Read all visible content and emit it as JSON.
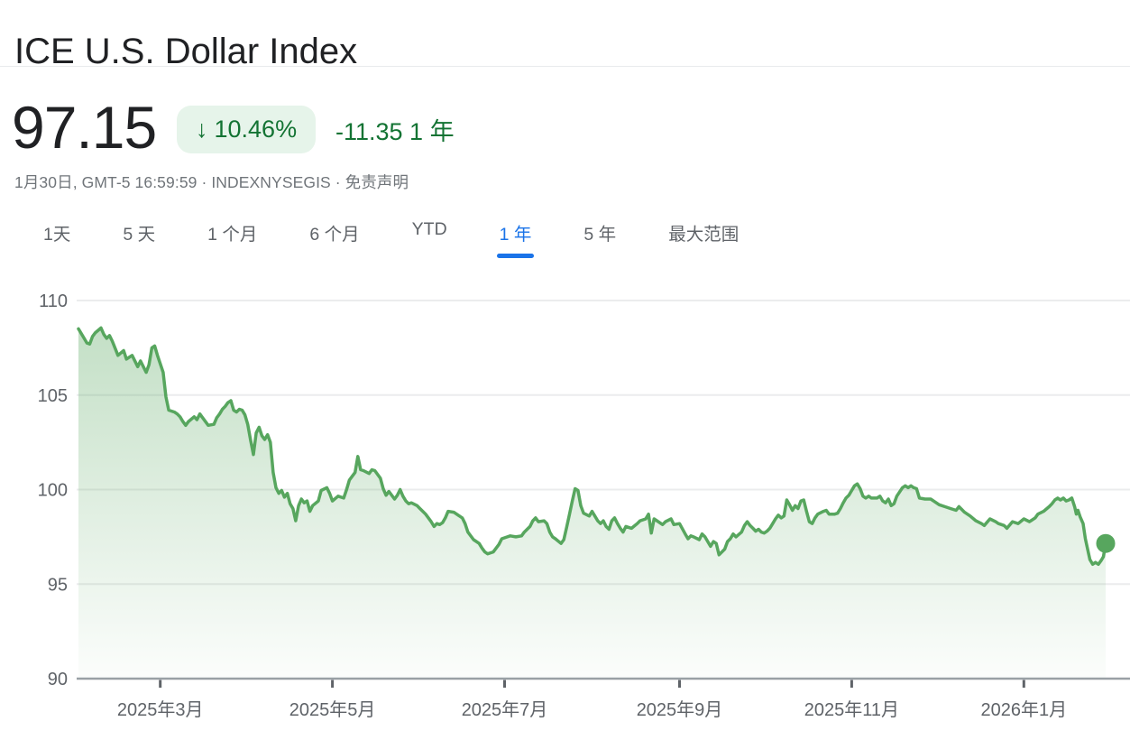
{
  "header": {
    "title": "ICE U.S. Dollar Index",
    "price": "97.15",
    "arrow": "↓",
    "change_percent": "10.46%",
    "change_absolute": "-11.35 1 年",
    "subtitle_prefix": "1月30日, GMT-5 16:59:59 · INDEXNYSEGIS · ",
    "disclaimer": "免责声明"
  },
  "tabs": [
    {
      "key": "1d",
      "label": "1天",
      "selected": false
    },
    {
      "key": "5d",
      "label": "5 天",
      "selected": false
    },
    {
      "key": "1m",
      "label": "1 个月",
      "selected": false
    },
    {
      "key": "6m",
      "label": "6 个月",
      "selected": false
    },
    {
      "key": "ytd",
      "label": "YTD",
      "selected": false
    },
    {
      "key": "1y",
      "label": "1 年",
      "selected": true
    },
    {
      "key": "5y",
      "label": "5 年",
      "selected": false
    },
    {
      "key": "max",
      "label": "最大范围",
      "selected": false
    }
  ],
  "colors": {
    "accent_blue": "#1a73e8",
    "line_green": "#57a65e",
    "area_green_rgb": "87,166,94",
    "badge_bg": "#e6f4ea",
    "text_green": "#137333",
    "grid": "#ebeced",
    "axis": "#9aa0a6",
    "tick": "#5f6368"
  },
  "chart_data": {
    "type": "line",
    "name": "ICE U.S. Dollar Index, 1 年",
    "x_unit": "days since 2025-01-31",
    "x_start_date": "2025-01-31",
    "x_end_date": "2026-01-30",
    "x_domain_days": [
      0,
      364
    ],
    "ylim": [
      90,
      110
    ],
    "yticks": [
      110,
      105,
      100,
      95,
      90
    ],
    "grid": true,
    "last_price": 97.15,
    "xticks": [
      {
        "day": 29,
        "label": "2025年3月"
      },
      {
        "day": 90,
        "label": "2025年5月"
      },
      {
        "day": 151,
        "label": "2025年7月"
      },
      {
        "day": 213,
        "label": "2025年9月"
      },
      {
        "day": 274,
        "label": "2025年11月"
      },
      {
        "day": 335,
        "label": "2026年1月"
      }
    ],
    "series": [
      {
        "name": "ICE U.S. Dollar Index",
        "points": [
          [
            0,
            108.5
          ],
          [
            2,
            108.0
          ],
          [
            3,
            107.75
          ],
          [
            4,
            107.7
          ],
          [
            5,
            108.1
          ],
          [
            6,
            108.3
          ],
          [
            8,
            108.55
          ],
          [
            9,
            108.2
          ],
          [
            10,
            108.0
          ],
          [
            11,
            108.15
          ],
          [
            12,
            107.85
          ],
          [
            14,
            107.1
          ],
          [
            16,
            107.35
          ],
          [
            17,
            106.9
          ],
          [
            19,
            107.1
          ],
          [
            21,
            106.5
          ],
          [
            22,
            106.8
          ],
          [
            24,
            106.2
          ],
          [
            25,
            106.6
          ],
          [
            26,
            107.5
          ],
          [
            27,
            107.6
          ],
          [
            28,
            107.1
          ],
          [
            30,
            106.2
          ],
          [
            31,
            104.9
          ],
          [
            32,
            104.2
          ],
          [
            34,
            104.1
          ],
          [
            35,
            104.0
          ],
          [
            36,
            103.85
          ],
          [
            37,
            103.6
          ],
          [
            38,
            103.4
          ],
          [
            39,
            103.6
          ],
          [
            41,
            103.85
          ],
          [
            42,
            103.7
          ],
          [
            43,
            104.0
          ],
          [
            44,
            103.8
          ],
          [
            46,
            103.4
          ],
          [
            48,
            103.45
          ],
          [
            49,
            103.8
          ],
          [
            50,
            104.0
          ],
          [
            51,
            104.25
          ],
          [
            52,
            104.4
          ],
          [
            53,
            104.6
          ],
          [
            54,
            104.7
          ],
          [
            55,
            104.2
          ],
          [
            56,
            104.1
          ],
          [
            57,
            104.25
          ],
          [
            58,
            104.2
          ],
          [
            59,
            103.95
          ],
          [
            60,
            103.45
          ],
          [
            61,
            102.6
          ],
          [
            62,
            101.85
          ],
          [
            63,
            103.0
          ],
          [
            64,
            103.3
          ],
          [
            65,
            102.85
          ],
          [
            66,
            102.65
          ],
          [
            67,
            102.9
          ],
          [
            68,
            102.5
          ],
          [
            69,
            100.9
          ],
          [
            70,
            100.1
          ],
          [
            71,
            99.8
          ],
          [
            72,
            99.95
          ],
          [
            73,
            99.6
          ],
          [
            74,
            99.8
          ],
          [
            75,
            99.25
          ],
          [
            76,
            99.0
          ],
          [
            77,
            98.35
          ],
          [
            78,
            99.15
          ],
          [
            79,
            99.5
          ],
          [
            80,
            99.3
          ],
          [
            81,
            99.4
          ],
          [
            82,
            98.85
          ],
          [
            83,
            99.15
          ],
          [
            85,
            99.4
          ],
          [
            86,
            99.95
          ],
          [
            88,
            100.1
          ],
          [
            89,
            99.8
          ],
          [
            90,
            99.4
          ],
          [
            92,
            99.65
          ],
          [
            94,
            99.55
          ],
          [
            95,
            100.0
          ],
          [
            96,
            100.5
          ],
          [
            97,
            100.7
          ],
          [
            98,
            100.9
          ],
          [
            99,
            101.75
          ],
          [
            100,
            101.05
          ],
          [
            101,
            101.0
          ],
          [
            103,
            100.85
          ],
          [
            104,
            101.05
          ],
          [
            105,
            101.0
          ],
          [
            107,
            100.6
          ],
          [
            108,
            100.05
          ],
          [
            109,
            99.7
          ],
          [
            110,
            99.9
          ],
          [
            112,
            99.5
          ],
          [
            113,
            99.7
          ],
          [
            114,
            100.0
          ],
          [
            115,
            99.65
          ],
          [
            116,
            99.4
          ],
          [
            117,
            99.25
          ],
          [
            118,
            99.3
          ],
          [
            120,
            99.15
          ],
          [
            121,
            99.0
          ],
          [
            122,
            98.85
          ],
          [
            123,
            98.7
          ],
          [
            125,
            98.3
          ],
          [
            126,
            98.05
          ],
          [
            127,
            98.2
          ],
          [
            128,
            98.15
          ],
          [
            129,
            98.25
          ],
          [
            130,
            98.5
          ],
          [
            131,
            98.85
          ],
          [
            133,
            98.8
          ],
          [
            134,
            98.7
          ],
          [
            136,
            98.5
          ],
          [
            137,
            98.2
          ],
          [
            138,
            97.75
          ],
          [
            140,
            97.35
          ],
          [
            142,
            97.15
          ],
          [
            143,
            96.9
          ],
          [
            144,
            96.7
          ],
          [
            145,
            96.6
          ],
          [
            147,
            96.7
          ],
          [
            148,
            96.9
          ],
          [
            149,
            97.1
          ],
          [
            150,
            97.4
          ],
          [
            152,
            97.5
          ],
          [
            153,
            97.55
          ],
          [
            155,
            97.5
          ],
          [
            157,
            97.55
          ],
          [
            158,
            97.75
          ],
          [
            160,
            98.05
          ],
          [
            161,
            98.35
          ],
          [
            162,
            98.5
          ],
          [
            163,
            98.3
          ],
          [
            165,
            98.35
          ],
          [
            166,
            98.2
          ],
          [
            167,
            97.75
          ],
          [
            168,
            97.5
          ],
          [
            169,
            97.4
          ],
          [
            171,
            97.15
          ],
          [
            172,
            97.35
          ],
          [
            173,
            98.0
          ],
          [
            174,
            98.7
          ],
          [
            175,
            99.4
          ],
          [
            176,
            100.05
          ],
          [
            177,
            99.95
          ],
          [
            178,
            99.15
          ],
          [
            179,
            98.75
          ],
          [
            181,
            98.6
          ],
          [
            182,
            98.85
          ],
          [
            183,
            98.6
          ],
          [
            184,
            98.35
          ],
          [
            185,
            98.2
          ],
          [
            186,
            98.35
          ],
          [
            187,
            98.05
          ],
          [
            188,
            97.9
          ],
          [
            189,
            98.35
          ],
          [
            190,
            98.5
          ],
          [
            191,
            98.2
          ],
          [
            192,
            97.95
          ],
          [
            193,
            97.75
          ],
          [
            194,
            98.05
          ],
          [
            196,
            97.95
          ],
          [
            198,
            98.2
          ],
          [
            199,
            98.35
          ],
          [
            201,
            98.45
          ],
          [
            202,
            98.7
          ],
          [
            203,
            97.7
          ],
          [
            204,
            98.45
          ],
          [
            205,
            98.35
          ],
          [
            207,
            98.15
          ],
          [
            208,
            98.3
          ],
          [
            210,
            98.45
          ],
          [
            211,
            98.15
          ],
          [
            213,
            98.2
          ],
          [
            215,
            97.65
          ],
          [
            216,
            97.4
          ],
          [
            217,
            97.55
          ],
          [
            218,
            97.5
          ],
          [
            220,
            97.35
          ],
          [
            221,
            97.65
          ],
          [
            222,
            97.5
          ],
          [
            224,
            97.0
          ],
          [
            225,
            97.25
          ],
          [
            226,
            97.15
          ],
          [
            227,
            96.55
          ],
          [
            229,
            96.85
          ],
          [
            230,
            97.25
          ],
          [
            231,
            97.4
          ],
          [
            232,
            97.65
          ],
          [
            233,
            97.5
          ],
          [
            235,
            97.75
          ],
          [
            236,
            98.1
          ],
          [
            237,
            98.3
          ],
          [
            238,
            98.1
          ],
          [
            239,
            97.95
          ],
          [
            240,
            97.8
          ],
          [
            241,
            97.9
          ],
          [
            242,
            97.75
          ],
          [
            243,
            97.7
          ],
          [
            244,
            97.8
          ],
          [
            245,
            97.95
          ],
          [
            246,
            98.2
          ],
          [
            247,
            98.45
          ],
          [
            248,
            98.65
          ],
          [
            249,
            98.5
          ],
          [
            250,
            98.6
          ],
          [
            251,
            99.45
          ],
          [
            252,
            99.2
          ],
          [
            253,
            98.9
          ],
          [
            254,
            99.15
          ],
          [
            255,
            99.0
          ],
          [
            256,
            99.4
          ],
          [
            257,
            99.45
          ],
          [
            258,
            98.85
          ],
          [
            259,
            98.3
          ],
          [
            260,
            98.2
          ],
          [
            261,
            98.5
          ],
          [
            262,
            98.7
          ],
          [
            264,
            98.85
          ],
          [
            265,
            98.9
          ],
          [
            266,
            98.7
          ],
          [
            268,
            98.7
          ],
          [
            269,
            98.75
          ],
          [
            270,
            99.0
          ],
          [
            271,
            99.3
          ],
          [
            272,
            99.55
          ],
          [
            273,
            99.7
          ],
          [
            274,
            99.95
          ],
          [
            275,
            100.2
          ],
          [
            276,
            100.3
          ],
          [
            277,
            100.05
          ],
          [
            278,
            99.65
          ],
          [
            279,
            99.55
          ],
          [
            280,
            99.65
          ],
          [
            281,
            99.55
          ],
          [
            283,
            99.55
          ],
          [
            284,
            99.65
          ],
          [
            285,
            99.4
          ],
          [
            286,
            99.3
          ],
          [
            287,
            99.5
          ],
          [
            288,
            99.15
          ],
          [
            289,
            99.25
          ],
          [
            290,
            99.65
          ],
          [
            292,
            100.1
          ],
          [
            293,
            100.2
          ],
          [
            294,
            100.1
          ],
          [
            295,
            100.2
          ],
          [
            296,
            100.1
          ],
          [
            297,
            100.05
          ],
          [
            298,
            99.55
          ],
          [
            300,
            99.5
          ],
          [
            302,
            99.5
          ],
          [
            303,
            99.4
          ],
          [
            305,
            99.2
          ],
          [
            307,
            99.1
          ],
          [
            309,
            99.0
          ],
          [
            311,
            98.9
          ],
          [
            312,
            99.1
          ],
          [
            314,
            98.8
          ],
          [
            316,
            98.6
          ],
          [
            318,
            98.35
          ],
          [
            320,
            98.2
          ],
          [
            321,
            98.1
          ],
          [
            323,
            98.45
          ],
          [
            325,
            98.3
          ],
          [
            326,
            98.2
          ],
          [
            328,
            98.1
          ],
          [
            329,
            97.95
          ],
          [
            331,
            98.3
          ],
          [
            333,
            98.2
          ],
          [
            335,
            98.45
          ],
          [
            337,
            98.3
          ],
          [
            339,
            98.5
          ],
          [
            340,
            98.7
          ],
          [
            342,
            98.85
          ],
          [
            344,
            99.1
          ],
          [
            345,
            99.25
          ],
          [
            346,
            99.45
          ],
          [
            347,
            99.55
          ],
          [
            348,
            99.45
          ],
          [
            349,
            99.55
          ],
          [
            350,
            99.4
          ],
          [
            351,
            99.45
          ],
          [
            352,
            99.55
          ],
          [
            353,
            99.1
          ],
          [
            353.6,
            98.7
          ],
          [
            354.2,
            98.9
          ],
          [
            355,
            98.55
          ],
          [
            356,
            98.2
          ],
          [
            356.8,
            97.4
          ],
          [
            357.6,
            96.85
          ],
          [
            358.4,
            96.3
          ],
          [
            359.4,
            96.05
          ],
          [
            360.4,
            96.15
          ],
          [
            361.4,
            96.05
          ],
          [
            362.4,
            96.25
          ],
          [
            363.2,
            96.45
          ],
          [
            364,
            97.15
          ]
        ]
      }
    ]
  }
}
